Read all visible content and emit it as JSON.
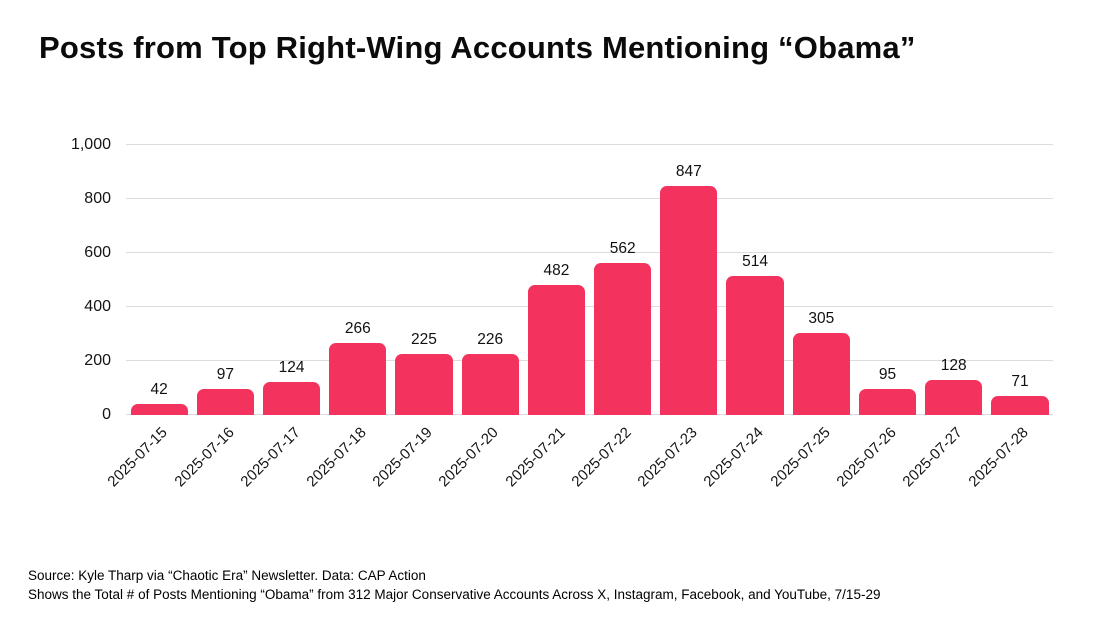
{
  "page": {
    "title": "Posts from Top Right-Wing Accounts Mentioning “Obama”"
  },
  "chart_data": {
    "type": "bar",
    "title": "Posts from Top Right-Wing Accounts Mentioning “Obama”",
    "categories": [
      "2025-07-15",
      "2025-07-16",
      "2025-07-17",
      "2025-07-18",
      "2025-07-19",
      "2025-07-20",
      "2025-07-21",
      "2025-07-22",
      "2025-07-23",
      "2025-07-24",
      "2025-07-25",
      "2025-07-26",
      "2025-07-27",
      "2025-07-28"
    ],
    "values": [
      42,
      97,
      124,
      266,
      225,
      226,
      482,
      562,
      847,
      514,
      305,
      95,
      128,
      71
    ],
    "xlabel": "",
    "ylabel": "",
    "ylim": [
      0,
      1000
    ],
    "yticks": [
      0,
      200,
      400,
      600,
      800,
      1000
    ],
    "ytick_labels": [
      "0",
      "200",
      "400",
      "600",
      "800",
      "1,000"
    ],
    "grid": "horizontal",
    "legend": "none",
    "value_labels": true,
    "x_tick_rotation_deg": 45
  },
  "footer": {
    "source_line": "Source: Kyle Tharp via “Chaotic Era” Newsletter. Data: CAP Action",
    "description_line": "Shows the Total # of Posts Mentioning “Obama” from 312 Major Conservative Accounts Across X, Instagram, Facebook, and YouTube, 7/15-29"
  },
  "colors": {
    "bar": "#F4325E",
    "grid_line": "#DCDCDC",
    "text": "#121212",
    "background": "#FFFFFF"
  }
}
